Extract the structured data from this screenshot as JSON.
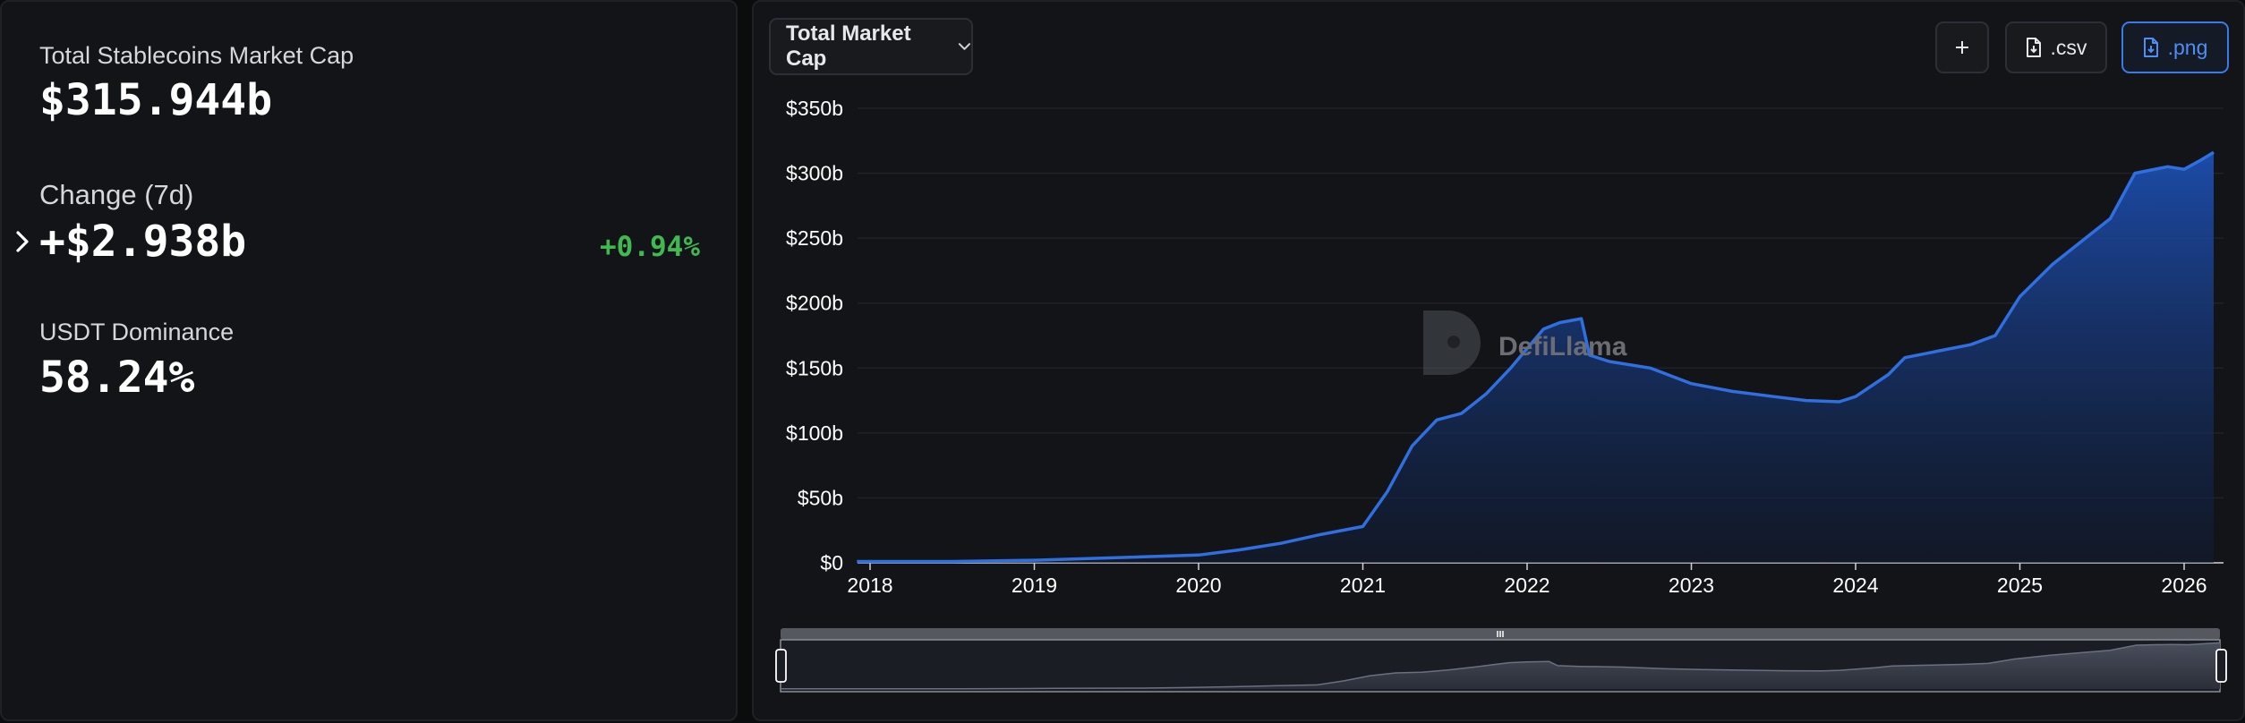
{
  "stats": {
    "total_label": "Total Stablecoins Market Cap",
    "total_value": "$315.944b",
    "change_label": "Change (7d)",
    "change_value": "+$2.938b",
    "change_pct": "+0.94%",
    "dominance_label": "USDT Dominance",
    "dominance_value": "58.24%"
  },
  "toolbar": {
    "metric_select": "Total Market Cap",
    "add_icon": "plus-icon",
    "csv_label": ".csv",
    "png_label": ".png",
    "file_icon": "file-download-icon"
  },
  "watermark": "DefiLlama",
  "colors": {
    "line": "#2f6fe0",
    "area_top": "#1b4aa8",
    "positive": "#3fb950",
    "accent": "#4f8ef7"
  },
  "chart_data": {
    "type": "area",
    "title": "",
    "xlabel": "",
    "ylabel": "",
    "ylim": [
      0,
      350
    ],
    "xlim": [
      2017.9,
      2026.2
    ],
    "y_ticks": [
      "$0",
      "$50b",
      "$100b",
      "$150b",
      "$200b",
      "$250b",
      "$300b",
      "$350b"
    ],
    "x_ticks": [
      "2018",
      "2019",
      "2020",
      "2021",
      "2022",
      "2023",
      "2024",
      "2025",
      "2026"
    ],
    "grid": true,
    "unit": "billion USD",
    "series": [
      {
        "x": [
          2017.92,
          2018.5,
          2019.0,
          2019.5,
          2020.0,
          2020.25,
          2020.5,
          2020.75,
          2021.0,
          2021.15,
          2021.3,
          2021.45,
          2021.6,
          2021.75,
          2021.9,
          2022.0,
          2022.1,
          2022.2,
          2022.33,
          2022.38,
          2022.5,
          2022.75,
          2023.0,
          2023.25,
          2023.5,
          2023.7,
          2023.9,
          2024.0,
          2024.2,
          2024.3,
          2024.5,
          2024.7,
          2024.85,
          2025.0,
          2025.2,
          2025.4,
          2025.55,
          2025.7,
          2025.9,
          2026.0,
          2026.1,
          2026.18
        ],
        "y": [
          1,
          1,
          2,
          4,
          6,
          10,
          15,
          22,
          28,
          55,
          90,
          110,
          115,
          130,
          150,
          165,
          180,
          185,
          188,
          160,
          155,
          150,
          138,
          132,
          128,
          125,
          124,
          128,
          145,
          158,
          163,
          168,
          175,
          205,
          230,
          250,
          265,
          300,
          305,
          303,
          310,
          316
        ]
      }
    ]
  }
}
